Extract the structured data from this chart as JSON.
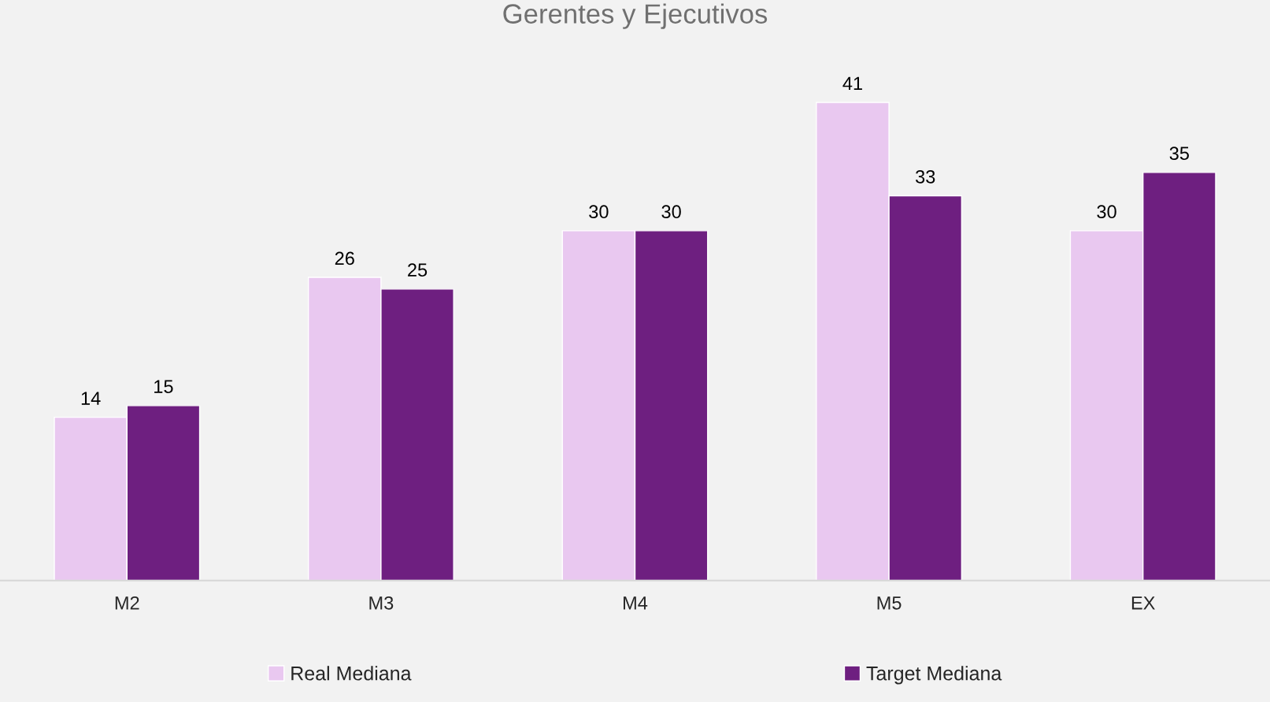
{
  "chart_data": {
    "type": "bar",
    "title": "Gerentes y Ejecutivos",
    "categories": [
      "M2",
      "M3",
      "M4",
      "M5",
      "EX"
    ],
    "series": [
      {
        "name": "Real Mediana",
        "color": "#e9c8f0",
        "values": [
          14,
          26,
          30,
          41,
          30
        ]
      },
      {
        "name": "Target Mediana",
        "color": "#6e1f80",
        "values": [
          15,
          25,
          30,
          33,
          35
        ]
      }
    ],
    "data_labels": true,
    "legend": "bottom",
    "grid": false
  }
}
